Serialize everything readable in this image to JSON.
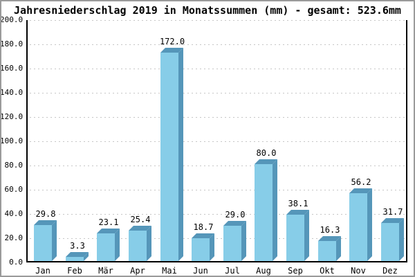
{
  "chart_data": {
    "type": "bar",
    "title": "Jahresniederschlag 2019 in Monatssummen (mm) - gesamt: 523.6mm",
    "total_mm": 523.6,
    "categories": [
      "Jan",
      "Feb",
      "Mär",
      "Apr",
      "Mai",
      "Jun",
      "Jul",
      "Aug",
      "Sep",
      "Okt",
      "Nov",
      "Dez"
    ],
    "values": [
      29.8,
      3.3,
      23.1,
      25.4,
      172.0,
      18.7,
      29.0,
      80.0,
      38.1,
      16.3,
      56.2,
      31.7
    ],
    "value_labels": [
      "29.8",
      "3.3",
      "23.1",
      "25.4",
      "172.0",
      "18.7",
      "29.0",
      "80.0",
      "38.1",
      "16.3",
      "56.2",
      "31.7"
    ],
    "xlabel": "",
    "ylabel": "",
    "ylim": [
      0,
      200
    ],
    "ytick_step": 20,
    "ytick_labels": [
      "0.0",
      "20.0",
      "40.0",
      "60.0",
      "80.0",
      "100.0",
      "120.0",
      "140.0",
      "160.0",
      "180.0",
      "200.0"
    ],
    "grid": "horizontal-dashed",
    "legend": "none",
    "colors": {
      "bar_front": "#87cde8",
      "bar_side": "#5596b9",
      "bar_top": "#5596b9",
      "grid_line": "#c6c6c6",
      "axis": "#000000",
      "background": "#ffffff",
      "outer_border": "#9a9a9a",
      "text": "#000000"
    }
  }
}
